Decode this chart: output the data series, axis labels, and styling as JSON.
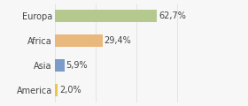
{
  "categories": [
    "Europa",
    "Africa",
    "Asia",
    "America"
  ],
  "values": [
    62.7,
    29.4,
    5.9,
    2.0
  ],
  "labels": [
    "62,7%",
    "29,4%",
    "5,9%",
    "2,0%"
  ],
  "bar_colors": [
    "#b5c98e",
    "#e8b87d",
    "#7b9bc8",
    "#e8c84a"
  ],
  "xlim": [
    0,
    100
  ],
  "background_color": "#f7f7f7",
  "bar_height": 0.5,
  "label_fontsize": 7.0,
  "tick_fontsize": 7.0,
  "grid_color": "#dddddd"
}
